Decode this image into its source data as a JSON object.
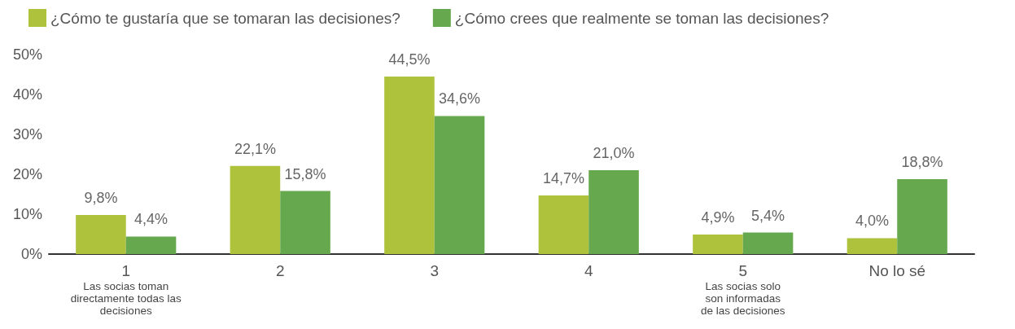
{
  "chart_data": {
    "type": "bar",
    "categories": [
      "1\nLas socias toman\ndirectamente todas las\ndecisiones",
      "2",
      "3",
      "4",
      "5\nLas socias solo\nson informadas\nde las decisiones",
      "No lo sé"
    ],
    "series": [
      {
        "name": "¿Cómo te gustaría que se tomaran las decisiones?",
        "color": "#aec23c",
        "values": [
          9.8,
          22.1,
          44.5,
          14.7,
          4.9,
          4.0
        ],
        "value_labels": [
          "9,8%",
          "22,1%",
          "44,5%",
          "14,7%",
          "4,9%",
          "4,0%"
        ]
      },
      {
        "name": "¿Cómo crees que realmente se toman las decisiones?",
        "color": "#66a84d",
        "values": [
          4.4,
          15.8,
          34.6,
          21.0,
          5.4,
          18.8
        ],
        "value_labels": [
          "4,4%",
          "15,8%",
          "34,6%",
          "21,0%",
          "5,4%",
          "18,8%"
        ]
      }
    ],
    "ylim": [
      0,
      50
    ],
    "yticks": [
      {
        "value": 0,
        "label": "0%"
      },
      {
        "value": 10,
        "label": "10%"
      },
      {
        "value": 20,
        "label": "20%"
      },
      {
        "value": 30,
        "label": "30%"
      },
      {
        "value": 40,
        "label": "40%"
      },
      {
        "value": 50,
        "label": "50%"
      }
    ],
    "grid": false,
    "legend": "top left"
  }
}
